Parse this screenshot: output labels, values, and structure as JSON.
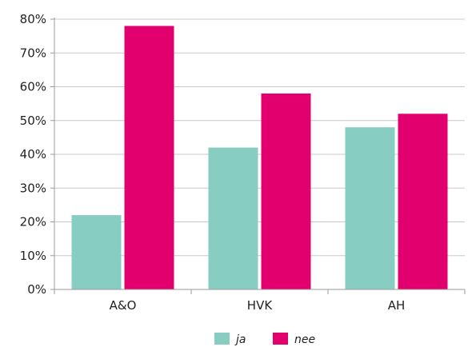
{
  "chart_data": {
    "type": "bar",
    "categories": [
      "A&O",
      "HVK",
      "AH"
    ],
    "series": [
      {
        "name": "ja",
        "color": "#88cdc1",
        "values": [
          22,
          42,
          48
        ]
      },
      {
        "name": "nee",
        "color": "#e2006e",
        "values": [
          78,
          58,
          52
        ]
      }
    ],
    "ylim": [
      0,
      80
    ],
    "yticks": [
      0,
      10,
      20,
      30,
      40,
      50,
      60,
      70,
      80
    ],
    "ytick_labels": [
      "0%",
      "10%",
      "20%",
      "30%",
      "40%",
      "50%",
      "60%",
      "70%",
      "80%"
    ],
    "grid": true,
    "legend_position": "bottom-center"
  }
}
